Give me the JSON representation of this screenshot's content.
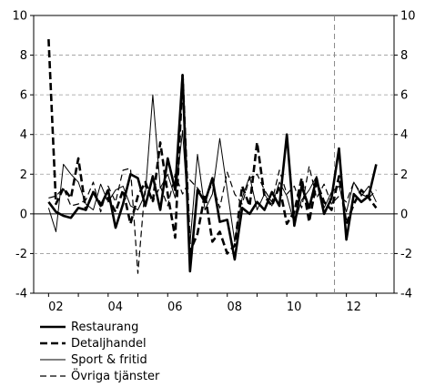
{
  "chart_data": {
    "type": "line",
    "title": "",
    "xlabel": "",
    "ylabel": "",
    "x_ticks": [
      "02",
      "04",
      "06",
      "08",
      "10",
      "12"
    ],
    "x_tick_values": [
      2002,
      2004,
      2006,
      2008,
      2010,
      2012
    ],
    "xlim": [
      2001.5,
      2013.6
    ],
    "ylim": [
      -4,
      10
    ],
    "y_ticks": [
      -4,
      -2,
      0,
      2,
      4,
      6,
      8,
      10
    ],
    "y_tick_labels": [
      "-4",
      "-2",
      "0",
      "2",
      "4",
      "6",
      "8",
      "10"
    ],
    "reference_vline_x": 2011.6,
    "zero_line": true,
    "legend_position": "bottom-left",
    "x": [
      2002.0,
      2002.25,
      2002.5,
      2002.75,
      2003.0,
      2003.25,
      2003.5,
      2003.75,
      2004.0,
      2004.25,
      2004.5,
      2004.75,
      2005.0,
      2005.25,
      2005.5,
      2005.75,
      2006.0,
      2006.25,
      2006.5,
      2006.75,
      2007.0,
      2007.25,
      2007.5,
      2007.75,
      2008.0,
      2008.25,
      2008.5,
      2008.75,
      2009.0,
      2009.25,
      2009.5,
      2009.75,
      2010.0,
      2010.25,
      2010.5,
      2010.75,
      2011.0,
      2011.25,
      2011.5,
      2011.75,
      2012.0,
      2012.25,
      2012.5,
      2012.75,
      2013.0
    ],
    "series": [
      {
        "name": "Restaurang",
        "style": "solid-thick",
        "values": [
          0.6,
          0.1,
          -0.1,
          -0.2,
          0.3,
          0.2,
          1.1,
          0.4,
          1.2,
          -0.7,
          0.5,
          2.0,
          1.8,
          0.4,
          1.9,
          0.2,
          2.8,
          1.2,
          7.0,
          -2.9,
          1.2,
          0.6,
          1.8,
          -0.4,
          -0.3,
          -2.3,
          0.3,
          0.0,
          0.6,
          0.2,
          1.1,
          0.4,
          4.0,
          -0.6,
          1.4,
          0.3,
          1.8,
          0.0,
          0.8,
          3.3,
          -1.3,
          1.0,
          0.6,
          0.9,
          2.5
        ]
      },
      {
        "name": "Detaljhandel",
        "style": "dashed-thick",
        "values": [
          8.8,
          0.5,
          1.3,
          0.8,
          2.8,
          0.2,
          1.1,
          0.5,
          0.8,
          0.1,
          1.2,
          -0.5,
          0.9,
          1.6,
          0.6,
          3.6,
          1.0,
          -1.2,
          7.0,
          -1.9,
          -1.0,
          1.0,
          -1.4,
          -0.9,
          -2.0,
          -1.6,
          1.4,
          0.4,
          3.6,
          0.9,
          0.4,
          1.4,
          -0.5,
          0.1,
          1.8,
          -0.4,
          1.6,
          0.6,
          0.2,
          1.9,
          -0.5,
          0.5,
          1.2,
          0.8,
          0.3
        ]
      },
      {
        "name": "Sport & fritid",
        "style": "solid-thin",
        "values": [
          0.3,
          -0.9,
          2.5,
          2.0,
          1.6,
          0.5,
          0.2,
          1.5,
          0.6,
          1.2,
          1.4,
          0.4,
          0.2,
          1.0,
          6.0,
          1.3,
          2.0,
          0.8,
          4.2,
          -1.5,
          3.0,
          0.2,
          1.0,
          3.8,
          1.2,
          -1.4,
          0.8,
          1.9,
          0.2,
          1.0,
          0.4,
          1.6,
          0.9,
          -0.5,
          0.7,
          1.2,
          1.9,
          0.3,
          1.1,
          1.4,
          0.1,
          1.6,
          0.9,
          1.4,
          0.6
        ]
      },
      {
        "name": "Övriga tjänster",
        "style": "dashed-thin",
        "values": [
          0.8,
          0.9,
          1.3,
          0.4,
          0.5,
          0.7,
          1.6,
          0.1,
          1.4,
          0.6,
          2.2,
          2.3,
          -3.0,
          1.5,
          0.6,
          1.4,
          0.4,
          2.0,
          1.0,
          1.7,
          1.3,
          0.8,
          1.5,
          0.3,
          2.1,
          1.0,
          0.5,
          1.8,
          2.0,
          1.2,
          0.6,
          2.2,
          1.0,
          1.4,
          0.3,
          2.4,
          0.8,
          1.5,
          0.5,
          0.9,
          0.6,
          1.6,
          1.0,
          0.8,
          1.2
        ]
      }
    ]
  }
}
